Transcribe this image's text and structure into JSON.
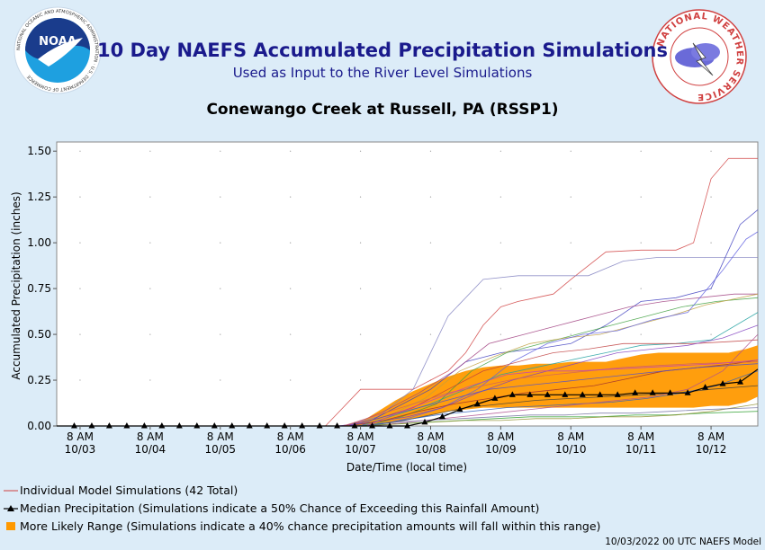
{
  "header": {
    "title": "10 Day NAEFS Accumulated Precipitation Simulations",
    "subtitle": "Used as Input to the River Level Simulations",
    "location": "Conewango Creek at Russell, PA (RSSP1)",
    "noaa_logo_text": "NOAA",
    "noaa_ring_text": "NATIONAL OCEANIC AND ATMOSPHERIC ADMINISTRATION · U.S. DEPARTMENT OF COMMERCE",
    "nws_ring_text": "NATIONAL WEATHER SERVICE"
  },
  "legend": {
    "individual": "Individual Model Simulations (42 Total)",
    "median": "Median Precipitation (Simulations indicate a 50% Chance of Exceeding this Rainfall Amount)",
    "range": "More Likely Range (Simulations indicate a 40% chance precipitation amounts will fall within this range)"
  },
  "footer": "10/03/2022 00 UTC NAEFS Model",
  "chart_data": {
    "type": "line",
    "xlabel": "Date/Time (local time)",
    "ylabel": "Accumulated Precipitation (inches)",
    "ylim": [
      0,
      1.55
    ],
    "yticks": [
      "0.00",
      "0.25",
      "0.50",
      "0.75",
      "1.00",
      "1.25",
      "1.50"
    ],
    "ytick_values": [
      0,
      0.25,
      0.5,
      0.75,
      1.0,
      1.25,
      1.5
    ],
    "xticks": [
      {
        "time": "8 AM",
        "date": "10/03"
      },
      {
        "time": "8 AM",
        "date": "10/04"
      },
      {
        "time": "8 AM",
        "date": "10/05"
      },
      {
        "time": "8 AM",
        "date": "10/06"
      },
      {
        "time": "8 AM",
        "date": "10/07"
      },
      {
        "time": "8 AM",
        "date": "10/08"
      },
      {
        "time": "8 AM",
        "date": "10/09"
      },
      {
        "time": "8 AM",
        "date": "10/10"
      },
      {
        "time": "8 AM",
        "date": "10/11"
      },
      {
        "time": "8 AM",
        "date": "10/12"
      }
    ],
    "x_hours": [
      -8,
      0,
      24,
      48,
      72,
      96,
      120,
      144,
      168,
      192,
      216,
      232
    ],
    "median": {
      "x": [
        -8,
        -2,
        4,
        10,
        16,
        22,
        28,
        34,
        40,
        46,
        52,
        58,
        64,
        70,
        76,
        82,
        88,
        94,
        100,
        106,
        112,
        118,
        124,
        130,
        136,
        142,
        148,
        154,
        160,
        166,
        172,
        178,
        184,
        190,
        196,
        202,
        208,
        214,
        220,
        226,
        232
      ],
      "values": [
        0,
        0,
        0,
        0,
        0,
        0,
        0,
        0,
        0,
        0,
        0,
        0,
        0,
        0,
        0,
        0,
        0,
        0,
        0,
        0,
        0,
        0.02,
        0.05,
        0.09,
        0.12,
        0.15,
        0.17,
        0.17,
        0.17,
        0.17,
        0.17,
        0.17,
        0.17,
        0.18,
        0.18,
        0.18,
        0.18,
        0.21,
        0.23,
        0.24,
        0.31
      ]
    },
    "range": {
      "x": [
        0,
        84,
        90,
        96,
        102,
        108,
        114,
        120,
        126,
        132,
        138,
        144,
        150,
        156,
        162,
        168,
        174,
        180,
        186,
        192,
        198,
        204,
        210,
        216,
        222,
        228,
        232
      ],
      "low": [
        0,
        0,
        0,
        0,
        0.01,
        0.02,
        0.04,
        0.06,
        0.08,
        0.09,
        0.1,
        0.1,
        0.1,
        0.1,
        0.1,
        0.1,
        0.1,
        0.1,
        0.1,
        0.1,
        0.1,
        0.1,
        0.1,
        0.11,
        0.11,
        0.13,
        0.16
      ],
      "high": [
        0,
        0,
        0,
        0.02,
        0.08,
        0.14,
        0.19,
        0.23,
        0.27,
        0.3,
        0.32,
        0.33,
        0.33,
        0.34,
        0.34,
        0.35,
        0.35,
        0.35,
        0.37,
        0.39,
        0.4,
        0.4,
        0.4,
        0.4,
        0.4,
        0.42,
        0.44
      ]
    },
    "members": [
      {
        "color": "#d04040",
        "x": [
          0,
          84,
          90,
          96,
          102,
          108,
          114,
          120,
          126,
          132,
          138,
          144,
          150,
          156,
          162,
          168,
          180,
          192,
          204,
          210,
          216,
          222,
          232
        ],
        "values": [
          0,
          0,
          0.1,
          0.2,
          0.2,
          0.2,
          0.2,
          0.25,
          0.3,
          0.4,
          0.55,
          0.65,
          0.68,
          0.7,
          0.72,
          0.8,
          0.95,
          0.96,
          0.96,
          1.0,
          1.35,
          1.46,
          1.46
        ]
      },
      {
        "color": "#8080c0",
        "x": [
          0,
          90,
          102,
          114,
          126,
          138,
          150,
          162,
          174,
          186,
          198,
          210,
          222,
          232
        ],
        "values": [
          0,
          0,
          0.05,
          0.2,
          0.6,
          0.8,
          0.82,
          0.82,
          0.82,
          0.9,
          0.92,
          0.92,
          0.92,
          0.92
        ]
      },
      {
        "color": "#4040c0",
        "x": [
          0,
          96,
          108,
          120,
          132,
          144,
          156,
          168,
          180,
          192,
          204,
          216,
          226,
          232
        ],
        "values": [
          0,
          0,
          0.1,
          0.2,
          0.35,
          0.4,
          0.42,
          0.45,
          0.55,
          0.68,
          0.7,
          0.75,
          1.1,
          1.18
        ]
      },
      {
        "color": "#a04080",
        "x": [
          0,
          92,
          104,
          116,
          128,
          140,
          152,
          164,
          176,
          188,
          200,
          212,
          224,
          232
        ],
        "values": [
          0,
          0,
          0.08,
          0.18,
          0.3,
          0.45,
          0.5,
          0.55,
          0.6,
          0.65,
          0.68,
          0.7,
          0.72,
          0.72
        ]
      },
      {
        "color": "#40a040",
        "x": [
          0,
          98,
          110,
          122,
          134,
          146,
          158,
          170,
          182,
          194,
          206,
          218,
          232
        ],
        "values": [
          0,
          0,
          0.05,
          0.12,
          0.3,
          0.4,
          0.45,
          0.5,
          0.55,
          0.6,
          0.65,
          0.68,
          0.7
        ]
      },
      {
        "color": "#c0a040",
        "x": [
          0,
          94,
          106,
          118,
          130,
          142,
          154,
          166,
          178,
          190,
          202,
          214,
          232
        ],
        "values": [
          0,
          0,
          0.06,
          0.15,
          0.3,
          0.38,
          0.45,
          0.48,
          0.5,
          0.55,
          0.6,
          0.66,
          0.72
        ]
      },
      {
        "color": "#6060e0",
        "x": [
          0,
          100,
          112,
          124,
          136,
          148,
          160,
          172,
          184,
          196,
          208,
          220,
          228,
          232
        ],
        "values": [
          0,
          0,
          0.04,
          0.1,
          0.2,
          0.35,
          0.45,
          0.5,
          0.52,
          0.58,
          0.62,
          0.85,
          1.02,
          1.06
        ]
      },
      {
        "color": "#20a0a0",
        "x": [
          0,
          96,
          108,
          120,
          132,
          144,
          156,
          168,
          180,
          192,
          204,
          216,
          232
        ],
        "values": [
          0,
          0,
          0.06,
          0.12,
          0.2,
          0.28,
          0.32,
          0.36,
          0.4,
          0.44,
          0.45,
          0.47,
          0.62
        ]
      },
      {
        "color": "#c04040",
        "x": [
          0,
          90,
          102,
          114,
          126,
          138,
          150,
          162,
          174,
          186,
          198,
          210,
          222,
          232
        ],
        "values": [
          0,
          0,
          0.04,
          0.1,
          0.2,
          0.3,
          0.35,
          0.4,
          0.42,
          0.45,
          0.45,
          0.45,
          0.46,
          0.47
        ]
      },
      {
        "color": "#8040c0",
        "x": [
          0,
          88,
          100,
          112,
          124,
          136,
          148,
          160,
          172,
          184,
          196,
          208,
          220,
          232
        ],
        "values": [
          0,
          0,
          0.02,
          0.05,
          0.1,
          0.18,
          0.25,
          0.3,
          0.35,
          0.4,
          0.42,
          0.44,
          0.48,
          0.55
        ]
      },
      {
        "color": "#404040",
        "x": [
          0,
          96,
          108,
          120,
          132,
          144,
          156,
          168,
          180,
          192,
          204,
          216,
          232
        ],
        "values": [
          0,
          0,
          0.02,
          0.06,
          0.1,
          0.12,
          0.14,
          0.15,
          0.16,
          0.17,
          0.18,
          0.2,
          0.22
        ]
      },
      {
        "color": "#30a030",
        "x": [
          0,
          94,
          106,
          118,
          130,
          142,
          154,
          166,
          178,
          190,
          202,
          214,
          232
        ],
        "values": [
          0,
          0,
          0.01,
          0.02,
          0.03,
          0.04,
          0.05,
          0.05,
          0.05,
          0.06,
          0.06,
          0.07,
          0.08
        ]
      },
      {
        "color": "#a03030",
        "x": [
          0,
          92,
          104,
          116,
          128,
          140,
          152,
          164,
          176,
          188,
          200,
          212,
          224,
          232
        ],
        "values": [
          0,
          0,
          0.03,
          0.08,
          0.12,
          0.15,
          0.18,
          0.2,
          0.22,
          0.26,
          0.3,
          0.32,
          0.34,
          0.36
        ]
      },
      {
        "color": "#3060c0",
        "x": [
          0,
          98,
          110,
          122,
          134,
          146,
          158,
          170,
          182,
          194,
          206,
          218,
          232
        ],
        "values": [
          0,
          0,
          0.03,
          0.06,
          0.08,
          0.1,
          0.11,
          0.12,
          0.13,
          0.15,
          0.18,
          0.22,
          0.3
        ]
      },
      {
        "color": "#b05090",
        "x": [
          0,
          100,
          112,
          124,
          136,
          148,
          160,
          172,
          184,
          196,
          208,
          220,
          232
        ],
        "values": [
          0,
          0,
          0.02,
          0.04,
          0.06,
          0.08,
          0.1,
          0.12,
          0.14,
          0.16,
          0.2,
          0.3,
          0.5
        ]
      },
      {
        "color": "#909030",
        "x": [
          0,
          96,
          108,
          120,
          132,
          144,
          156,
          168,
          180,
          192,
          204,
          216,
          232
        ],
        "values": [
          0,
          0,
          0.01,
          0.02,
          0.03,
          0.03,
          0.04,
          0.04,
          0.05,
          0.05,
          0.06,
          0.08,
          0.12
        ]
      },
      {
        "color": "#5050d0",
        "x": [
          0,
          92,
          104,
          116,
          128,
          140,
          152,
          164,
          176,
          188,
          200,
          212,
          232
        ],
        "values": [
          0,
          0,
          0.05,
          0.1,
          0.15,
          0.2,
          0.22,
          0.24,
          0.26,
          0.28,
          0.3,
          0.32,
          0.34
        ]
      },
      {
        "color": "#d06060",
        "x": [
          0,
          90,
          102,
          114,
          126,
          138,
          150,
          162,
          174,
          186,
          198,
          210,
          232
        ],
        "values": [
          0,
          0,
          0.06,
          0.12,
          0.18,
          0.22,
          0.26,
          0.28,
          0.3,
          0.32,
          0.33,
          0.34,
          0.35
        ]
      },
      {
        "color": "#7070a0",
        "x": [
          0,
          94,
          106,
          118,
          130,
          142,
          154,
          166,
          178,
          190,
          202,
          214,
          232
        ],
        "values": [
          0,
          0,
          0.02,
          0.03,
          0.04,
          0.05,
          0.06,
          0.06,
          0.07,
          0.07,
          0.08,
          0.09,
          0.1
        ]
      },
      {
        "color": "#c040c0",
        "x": [
          0,
          98,
          110,
          122,
          134,
          146,
          158,
          170,
          182,
          194,
          206,
          218,
          232
        ],
        "values": [
          0,
          0,
          0.08,
          0.15,
          0.22,
          0.28,
          0.3,
          0.3,
          0.31,
          0.32,
          0.33,
          0.34,
          0.36
        ]
      }
    ]
  }
}
